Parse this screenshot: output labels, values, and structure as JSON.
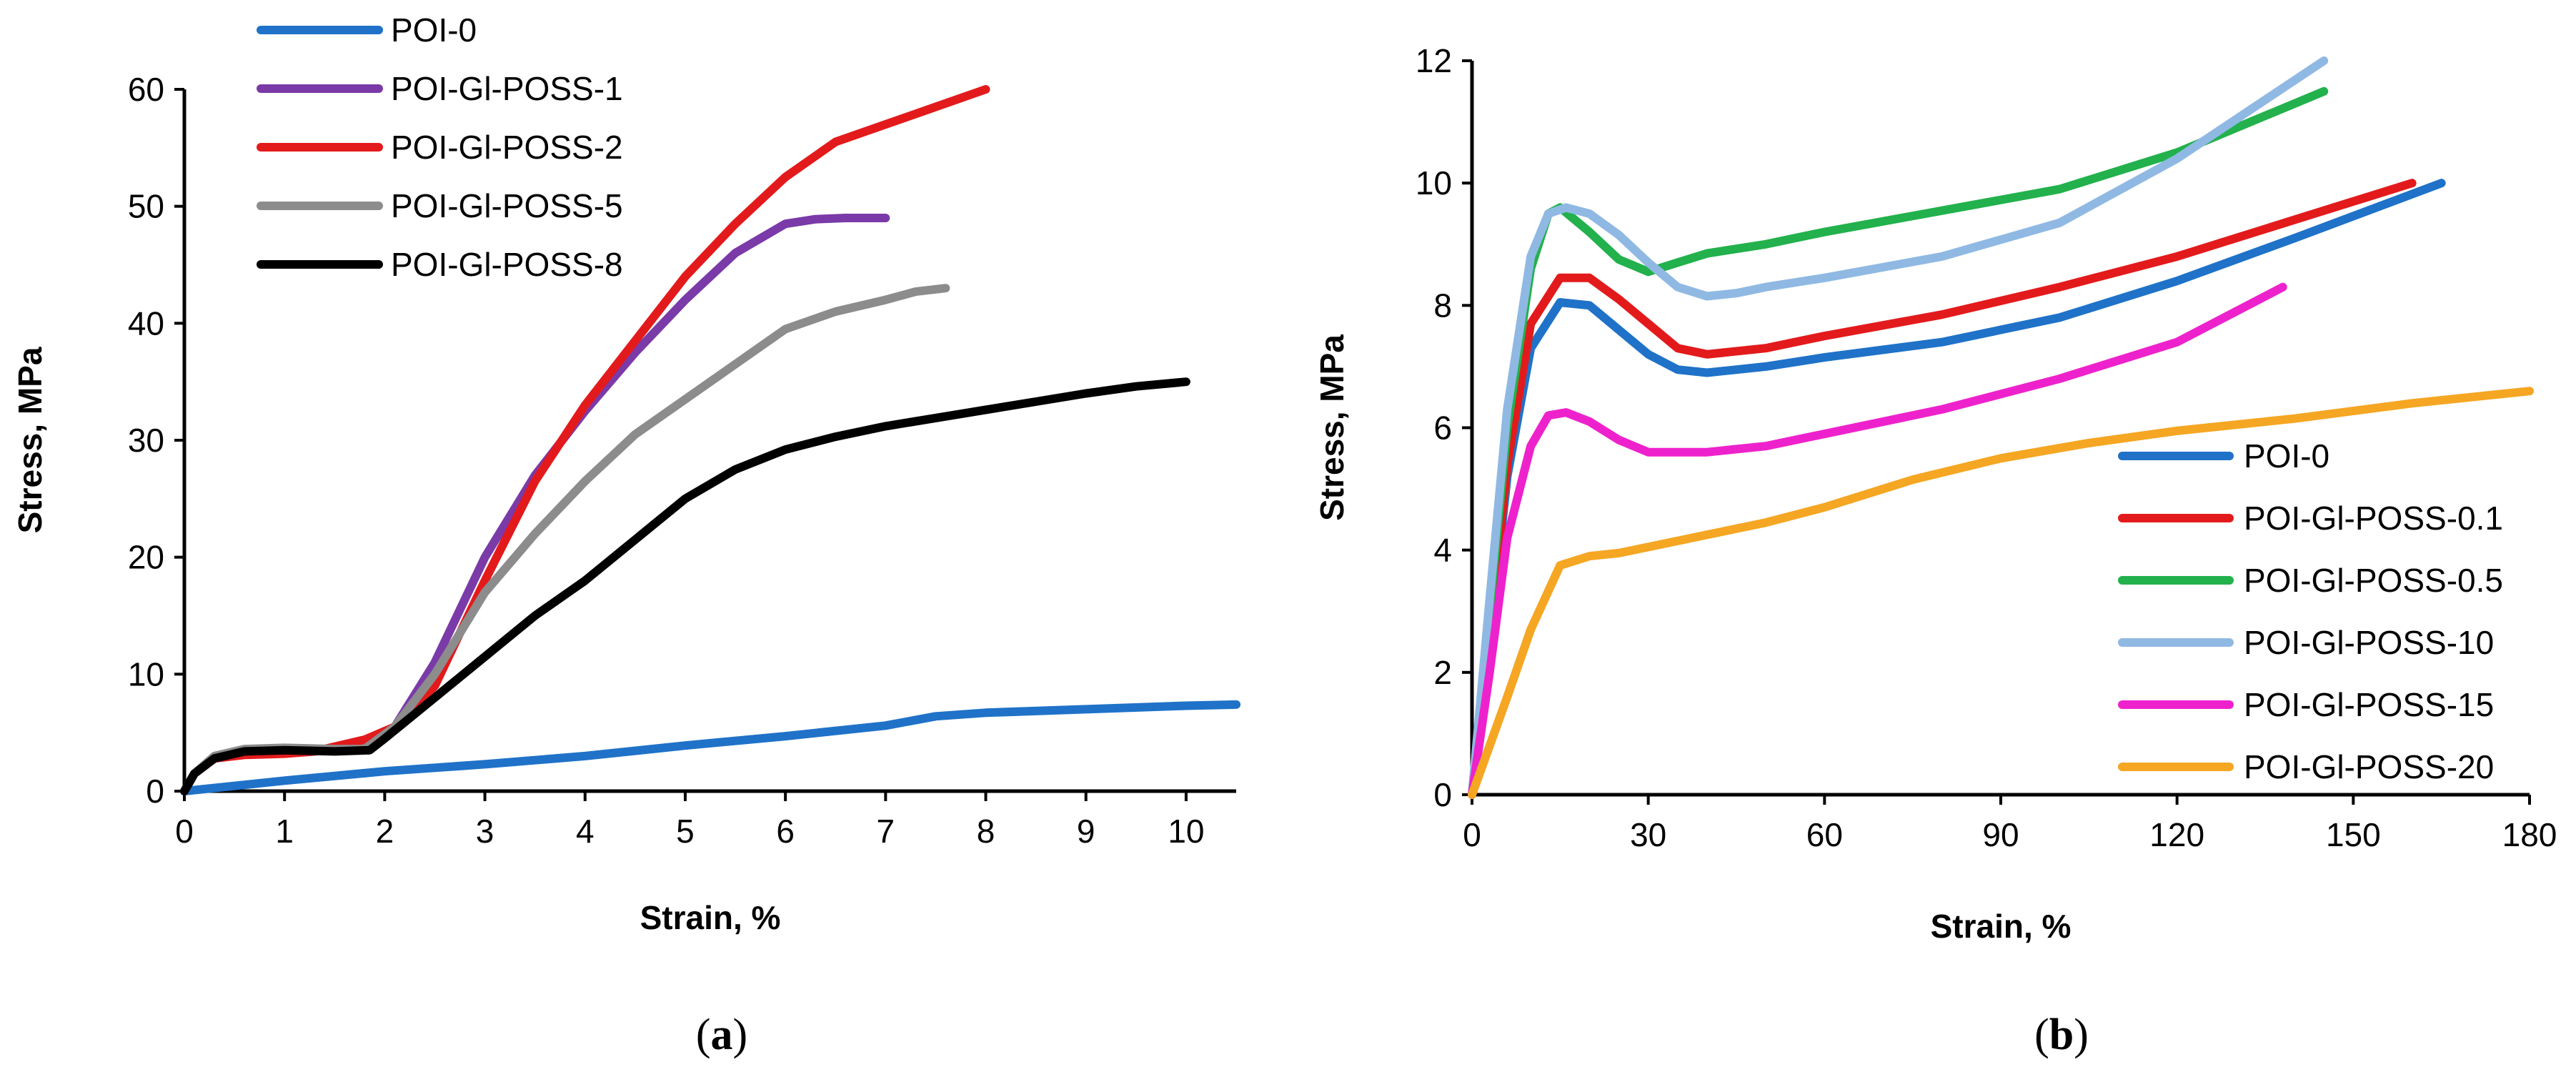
{
  "chart_data": [
    {
      "type": "line",
      "caption": "(a)",
      "xlabel": "Strain, %",
      "ylabel": "Stress, MPa",
      "xlim": [
        0,
        10.5
      ],
      "ylim": [
        0,
        60
      ],
      "xticks": [
        0,
        1,
        2,
        3,
        4,
        5,
        6,
        7,
        8,
        9,
        10
      ],
      "yticks": [
        0,
        10,
        20,
        30,
        40,
        50,
        60
      ],
      "legend_position": "top-left",
      "series": [
        {
          "name": "POI-0",
          "color": "#1f72c8",
          "x": [
            0,
            1,
            2,
            3,
            4,
            5,
            6,
            7,
            7.5,
            8,
            9,
            10,
            10.5
          ],
          "y": [
            0,
            0.9,
            1.7,
            2.3,
            3.0,
            3.9,
            4.7,
            5.6,
            6.4,
            6.7,
            7.0,
            7.3,
            7.4
          ]
        },
        {
          "name": "POI-Gl-POSS-1",
          "color": "#7a3aa8",
          "x": [
            0,
            0.1,
            0.3,
            0.6,
            1,
            1.5,
            1.8,
            2.1,
            2.5,
            3,
            3.5,
            4,
            4.5,
            5,
            5.5,
            6,
            6.3,
            6.6,
            7
          ],
          "y": [
            0,
            1.5,
            2.8,
            3.3,
            3.4,
            3.5,
            3.6,
            5.5,
            11,
            20,
            27,
            32.5,
            37.5,
            42,
            46,
            48.5,
            48.9,
            49,
            49
          ]
        },
        {
          "name": "POI-Gl-POSS-2",
          "color": "#e31a1c",
          "x": [
            0,
            0.1,
            0.3,
            0.6,
            1,
            1.3,
            1.8,
            2.1,
            2.5,
            3,
            3.5,
            4,
            4.5,
            5,
            5.5,
            6,
            6.5,
            7,
            7.5,
            8
          ],
          "y": [
            0,
            1.5,
            2.8,
            3.1,
            3.2,
            3.4,
            4.4,
            5.5,
            9,
            18,
            26.5,
            33,
            38.5,
            44,
            48.5,
            52.5,
            55.5,
            57,
            58.5,
            60
          ]
        },
        {
          "name": "POI-Gl-POSS-5",
          "color": "#8c8c8c",
          "x": [
            0,
            0.1,
            0.3,
            0.6,
            1,
            1.5,
            1.8,
            2.1,
            2.5,
            3,
            3.5,
            4,
            4.5,
            5,
            5.5,
            6,
            6.5,
            7,
            7.3,
            7.6
          ],
          "y": [
            0,
            1.5,
            3.0,
            3.6,
            3.7,
            3.6,
            3.6,
            5.5,
            10,
            17,
            22,
            26.5,
            30.5,
            33.5,
            36.5,
            39.5,
            41,
            42,
            42.7,
            43
          ]
        },
        {
          "name": "POI-Gl-POSS-8",
          "color": "#000000",
          "x": [
            0,
            0.1,
            0.3,
            0.6,
            1,
            1.5,
            1.85,
            2,
            2.5,
            3,
            3.5,
            4,
            4.5,
            5,
            5.5,
            6,
            6.5,
            7,
            7.5,
            8,
            8.5,
            9,
            9.5,
            10
          ],
          "y": [
            0,
            1.5,
            2.8,
            3.4,
            3.5,
            3.4,
            3.5,
            4.5,
            8,
            11.5,
            15,
            18,
            21.5,
            25,
            27.5,
            29.2,
            30.3,
            31.2,
            31.9,
            32.6,
            33.3,
            34,
            34.6,
            35
          ]
        }
      ]
    },
    {
      "type": "line",
      "caption": "(b)",
      "xlabel": "Strain, %",
      "ylabel": "Stress, MPa",
      "xlim": [
        0,
        180
      ],
      "ylim": [
        0,
        12
      ],
      "xticks": [
        0,
        30,
        60,
        90,
        120,
        150,
        180
      ],
      "yticks": [
        0,
        2,
        4,
        6,
        8,
        10,
        12
      ],
      "legend_position": "bottom-right",
      "series": [
        {
          "name": "POI-0",
          "color": "#1f72c8",
          "x": [
            0,
            3,
            6,
            10,
            15,
            20,
            25,
            30,
            35,
            40,
            50,
            60,
            80,
            100,
            120,
            140,
            165
          ],
          "y": [
            0,
            2.5,
            5.2,
            7.3,
            8.05,
            8.0,
            7.6,
            7.2,
            6.95,
            6.9,
            7.0,
            7.15,
            7.4,
            7.8,
            8.4,
            9.1,
            10
          ]
        },
        {
          "name": "POI-Gl-POSS-0.1",
          "color": "#e31a1c",
          "x": [
            0,
            3,
            6,
            10,
            15,
            20,
            25,
            30,
            35,
            40,
            50,
            60,
            80,
            100,
            120,
            140,
            160
          ],
          "y": [
            0,
            2.6,
            5.4,
            7.7,
            8.45,
            8.45,
            8.1,
            7.7,
            7.3,
            7.2,
            7.3,
            7.5,
            7.85,
            8.3,
            8.8,
            9.4,
            10
          ]
        },
        {
          "name": "POI-Gl-POSS-0.5",
          "color": "#22b14c",
          "x": [
            0,
            3,
            6,
            10,
            13,
            15,
            20,
            25,
            30,
            35,
            40,
            50,
            60,
            80,
            100,
            120,
            145
          ],
          "y": [
            0,
            3.0,
            6.0,
            8.6,
            9.5,
            9.6,
            9.2,
            8.75,
            8.55,
            8.7,
            8.85,
            9.0,
            9.2,
            9.55,
            9.9,
            10.5,
            11.5
          ]
        },
        {
          "name": "POI-Gl-POSS-10",
          "color": "#8fb9e3",
          "x": [
            0,
            3,
            6,
            10,
            13,
            16,
            20,
            25,
            30,
            35,
            40,
            45,
            50,
            60,
            80,
            100,
            120,
            145
          ],
          "y": [
            0,
            3.2,
            6.3,
            8.8,
            9.5,
            9.6,
            9.5,
            9.15,
            8.7,
            8.3,
            8.15,
            8.2,
            8.3,
            8.45,
            8.8,
            9.35,
            10.4,
            12
          ]
        },
        {
          "name": "POI-Gl-POSS-15",
          "color": "#ee22cc",
          "x": [
            0,
            3,
            6,
            10,
            13,
            16,
            20,
            25,
            30,
            40,
            50,
            60,
            80,
            100,
            120,
            138
          ],
          "y": [
            0,
            2.0,
            4.2,
            5.7,
            6.2,
            6.25,
            6.1,
            5.8,
            5.6,
            5.6,
            5.7,
            5.9,
            6.3,
            6.8,
            7.4,
            8.3
          ]
        },
        {
          "name": "POI-Gl-POSS-20",
          "color": "#f5a623",
          "x": [
            0,
            3,
            6,
            10,
            15,
            20,
            25,
            30,
            40,
            50,
            60,
            75,
            90,
            105,
            120,
            140,
            160,
            180
          ],
          "y": [
            0,
            0.8,
            1.6,
            2.7,
            3.75,
            3.9,
            3.95,
            4.05,
            4.25,
            4.45,
            4.7,
            5.15,
            5.5,
            5.75,
            5.95,
            6.15,
            6.4,
            6.6
          ]
        }
      ]
    }
  ]
}
